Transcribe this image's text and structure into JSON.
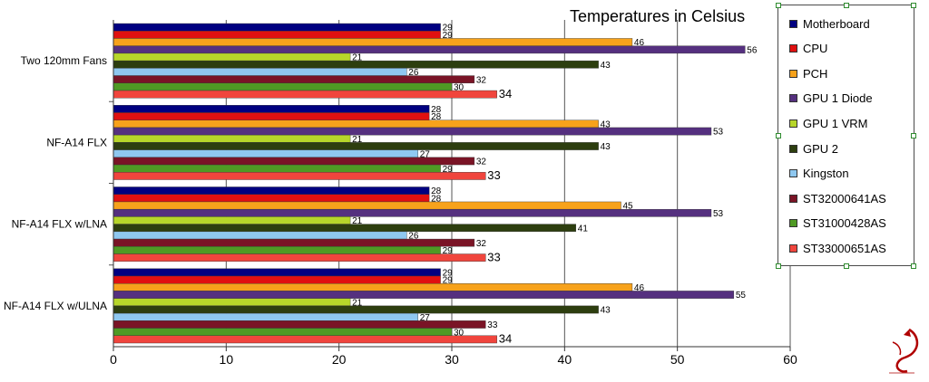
{
  "chart_data": {
    "type": "bar",
    "orientation": "horizontal",
    "title": "Temperatures in Celsius",
    "xlabel": "",
    "ylabel": "",
    "xlim": [
      0,
      60
    ],
    "x_ticks": [
      "0",
      "10",
      "20",
      "30",
      "40",
      "50",
      "60"
    ],
    "grid": "vertical",
    "legend_position": "right",
    "categories": [
      "Two 120mm Fans",
      "NF-A14 FLX",
      "NF-A14 FLX w/LNA",
      "NF-A14 FLX w/ULNA"
    ],
    "series": [
      {
        "name": "Motherboard",
        "color": "#000080",
        "values": [
          29,
          28,
          28,
          29
        ]
      },
      {
        "name": "CPU",
        "color": "#e01010",
        "values": [
          29,
          28,
          28,
          29
        ]
      },
      {
        "name": "PCH",
        "color": "#f7a21b",
        "values": [
          46,
          43,
          45,
          46
        ]
      },
      {
        "name": "GPU 1 Diode",
        "color": "#55307f",
        "values": [
          56,
          53,
          53,
          55
        ]
      },
      {
        "name": "GPU 1 VRM",
        "color": "#b7d62a",
        "values": [
          21,
          21,
          21,
          21
        ]
      },
      {
        "name": "GPU 2",
        "color": "#2d3e0f",
        "values": [
          43,
          43,
          41,
          43
        ]
      },
      {
        "name": "Kingston",
        "color": "#8fc8f0",
        "values": [
          26,
          27,
          26,
          27
        ]
      },
      {
        "name": "ST32000641AS",
        "color": "#7a1426",
        "values": [
          32,
          32,
          32,
          33
        ]
      },
      {
        "name": "ST31000428AS",
        "color": "#4f9a24",
        "values": [
          30,
          29,
          29,
          30
        ]
      },
      {
        "name": "ST33000651AS",
        "color": "#f0453d",
        "values": [
          34,
          33,
          33,
          34
        ]
      }
    ]
  }
}
